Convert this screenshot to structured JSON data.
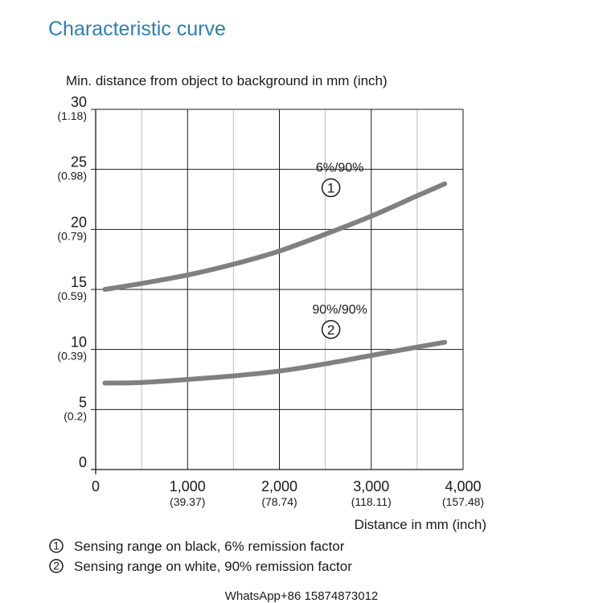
{
  "chart_data": {
    "type": "line",
    "title": "Characteristic curve",
    "ylabel": "Min. distance from object to background in mm (inch)",
    "xlabel": "Distance in mm (inch)",
    "xlim": [
      0,
      4000
    ],
    "ylim": [
      0,
      30
    ],
    "grid": true,
    "x_ticks": [
      {
        "value": 0,
        "label": "0",
        "sub": ""
      },
      {
        "value": 1000,
        "label": "1,000",
        "sub": "(39.37)"
      },
      {
        "value": 2000,
        "label": "2,000",
        "sub": "(78.74)"
      },
      {
        "value": 3000,
        "label": "3,000",
        "sub": "(118.11)"
      },
      {
        "value": 4000,
        "label": "4,000",
        "sub": "(157.48)"
      }
    ],
    "y_ticks": [
      {
        "value": 0,
        "label": "0",
        "sub": ""
      },
      {
        "value": 5,
        "label": "5",
        "sub": "(0.2)"
      },
      {
        "value": 10,
        "label": "10",
        "sub": "(0.39)"
      },
      {
        "value": 15,
        "label": "15",
        "sub": "(0.59)"
      },
      {
        "value": 20,
        "label": "20",
        "sub": "(0.79)"
      },
      {
        "value": 25,
        "label": "25",
        "sub": "(0.98)"
      },
      {
        "value": 30,
        "label": "30",
        "sub": "(1.18)"
      }
    ],
    "series": [
      {
        "name": "6%/90%",
        "marker": "①",
        "color": "#808080",
        "x": [
          100,
          500,
          1000,
          1500,
          2000,
          2500,
          3000,
          3500,
          3800
        ],
        "y": [
          15.0,
          15.5,
          16.2,
          17.1,
          18.2,
          19.6,
          21.1,
          22.8,
          23.8
        ]
      },
      {
        "name": "90%/90%",
        "marker": "②",
        "color": "#808080",
        "x": [
          100,
          500,
          1000,
          1500,
          2000,
          2500,
          3000,
          3500,
          3800
        ],
        "y": [
          7.2,
          7.25,
          7.5,
          7.8,
          8.2,
          8.8,
          9.5,
          10.2,
          10.6
        ]
      }
    ],
    "legend": [
      {
        "marker": "①",
        "text": "Sensing range on black, 6% remission factor"
      },
      {
        "marker": "②",
        "text": "Sensing range on white, 90% remission factor"
      }
    ]
  },
  "footer": "WhatsApp+86 15874873012"
}
